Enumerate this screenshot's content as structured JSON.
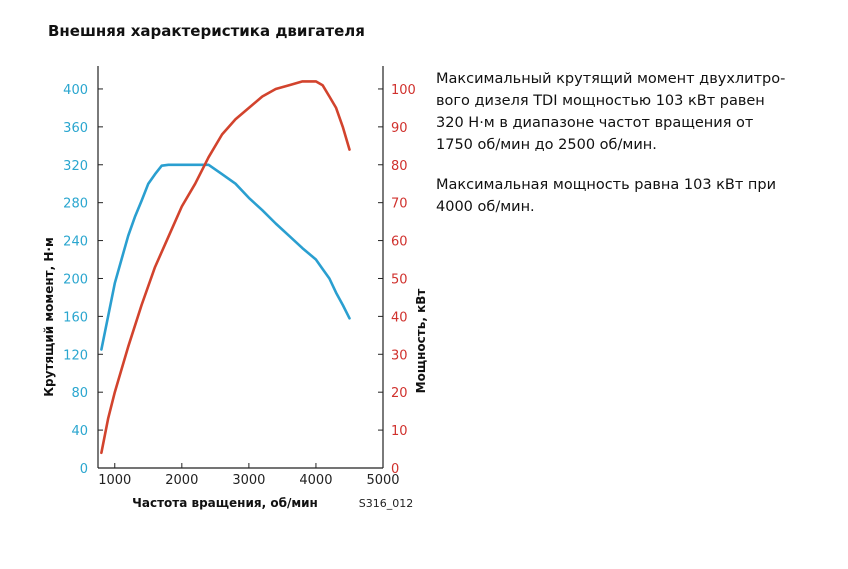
{
  "title": "Внешняя характеристика двигателя",
  "description": {
    "line1": [
      "Максимальный крутящий момент двухлитро-",
      "вого дизеля TDI мощностью 103 кВт равен",
      "320 Н·м в диапазоне частот вращения от",
      "1750 об/мин до 2500 об/мин."
    ],
    "line2": [
      "Максимальная мощность равна 103 кВт при",
      "4000 об/мин."
    ]
  },
  "figure_code": "S316_012",
  "colors": {
    "torque": "#2a9fd0",
    "power": "#d2432d",
    "axis": "#222222"
  },
  "chart_data": {
    "type": "line",
    "xlabel": "Частота вращения, об/мин",
    "ylabel_left": "Крутящий момент, Н·м",
    "ylabel_right": "Мощность, кВт",
    "xlim": [
      750,
      5000
    ],
    "ylim_left": [
      0,
      420
    ],
    "ylim_right": [
      0,
      105
    ],
    "x_ticks": [
      1000,
      2000,
      3000,
      4000,
      5000
    ],
    "y_left_ticks": [
      0,
      40,
      80,
      120,
      160,
      200,
      240,
      280,
      320,
      360,
      400
    ],
    "y_right_ticks": [
      0,
      10,
      20,
      30,
      40,
      50,
      60,
      70,
      80,
      90,
      100
    ],
    "grid": false,
    "series": [
      {
        "axis": "left",
        "x": [
          800,
          900,
          1000,
          1100,
          1200,
          1300,
          1400,
          1500,
          1600,
          1700,
          1800,
          2000,
          2200,
          2400,
          2600,
          2800,
          3000,
          3200,
          3400,
          3600,
          3800,
          4000,
          4100,
          4200,
          4300,
          4400,
          4500
        ],
        "values": [
          125,
          160,
          195,
          220,
          245,
          265,
          282,
          300,
          310,
          319,
          320,
          320,
          320,
          320,
          310,
          300,
          285,
          272,
          258,
          245,
          232,
          220,
          210,
          200,
          185,
          172,
          158
        ]
      },
      {
        "axis": "right",
        "x": [
          800,
          900,
          1000,
          1200,
          1400,
          1600,
          1800,
          2000,
          2200,
          2400,
          2600,
          2800,
          3000,
          3200,
          3400,
          3600,
          3800,
          4000,
          4100,
          4200,
          4300,
          4400,
          4500
        ],
        "values": [
          4,
          13,
          20,
          32,
          43,
          53,
          61,
          69,
          75,
          82,
          88,
          92,
          95,
          98,
          100,
          101,
          102,
          102,
          101,
          98,
          95,
          90,
          84
        ]
      }
    ]
  }
}
